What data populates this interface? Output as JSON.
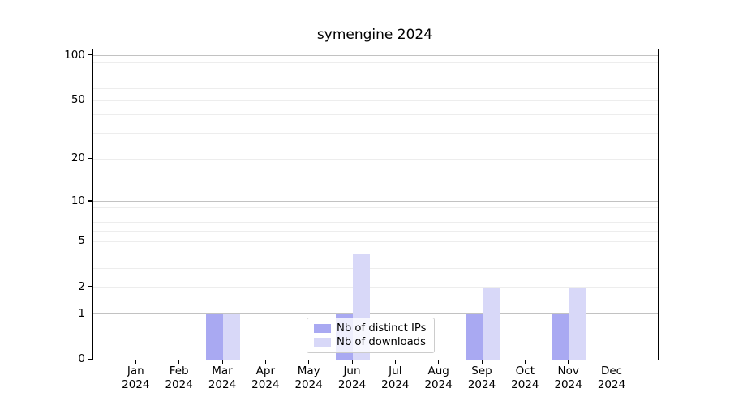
{
  "chart_data": {
    "type": "bar",
    "title": "symengine 2024",
    "categories": [
      "Jan",
      "Feb",
      "Mar",
      "Apr",
      "May",
      "Jun",
      "Jul",
      "Aug",
      "Sep",
      "Oct",
      "Nov",
      "Dec"
    ],
    "x_year_label": "2024",
    "series": [
      {
        "name": "Nb of distinct IPs",
        "color": "#a9a9f2",
        "values": [
          0,
          0,
          1,
          0,
          0,
          1,
          0,
          0,
          1,
          0,
          1,
          0
        ]
      },
      {
        "name": "Nb of downloads",
        "color": "#d8d8f8",
        "values": [
          0,
          0,
          1,
          0,
          0,
          4,
          0,
          0,
          2,
          0,
          2,
          0
        ]
      }
    ],
    "xlabel": "",
    "ylabel": "",
    "yscale": "log10(1+y)",
    "ylim": [
      0,
      110
    ],
    "ytick_labels": [
      0,
      1,
      2,
      5,
      10,
      20,
      50,
      100
    ],
    "grid_major": [
      1,
      10,
      100
    ],
    "grid_minor": [
      2,
      3,
      4,
      5,
      6,
      7,
      8,
      9,
      20,
      30,
      40,
      50,
      60,
      70,
      80,
      90
    ],
    "legend_position": "lower center",
    "colors": {
      "spine": "#000000",
      "grid_major": "#c2c2c2",
      "grid_minor": "#ededed",
      "text": "#000000",
      "background": "#ffffff"
    }
  }
}
